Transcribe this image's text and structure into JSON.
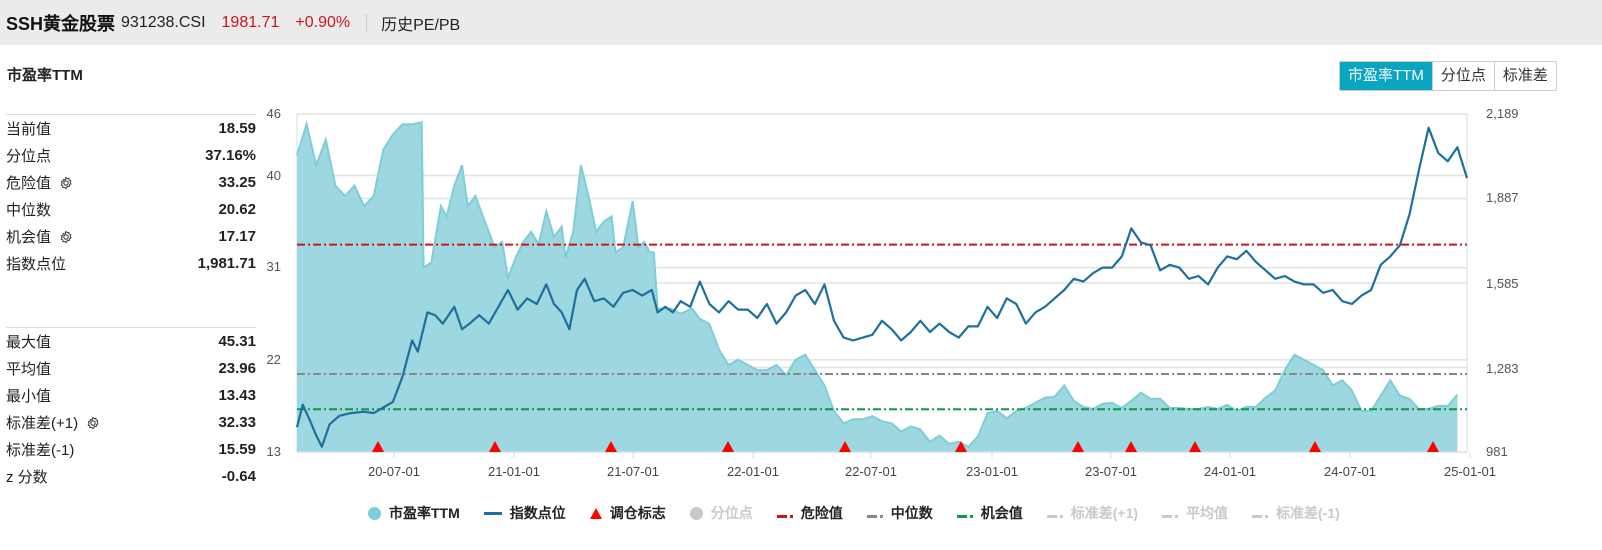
{
  "header": {
    "name": "SSH黄金股票",
    "code": "931238.CSI",
    "price": "1981.71",
    "change": "+0.90%",
    "page": "历史PE/PB"
  },
  "section": {
    "title": "市盈率TTM"
  },
  "tabs": [
    {
      "label": "市盈率TTM",
      "active": true
    },
    {
      "label": "分位点",
      "active": false
    },
    {
      "label": "标准差",
      "active": false
    }
  ],
  "stats_primary": [
    {
      "label": "当前值",
      "value": "18.59",
      "gear": false
    },
    {
      "label": "分位点",
      "value": "37.16%",
      "gear": false
    },
    {
      "label": "危险值",
      "value": "33.25",
      "gear": true
    },
    {
      "label": "中位数",
      "value": "20.62",
      "gear": false
    },
    {
      "label": "机会值",
      "value": "17.17",
      "gear": true
    },
    {
      "label": "指数点位",
      "value": "1,981.71",
      "gear": false
    }
  ],
  "stats_secondary": [
    {
      "label": "最大值",
      "value": "45.31",
      "gear": false
    },
    {
      "label": "平均值",
      "value": "23.96",
      "gear": false
    },
    {
      "label": "最小值",
      "value": "13.43",
      "gear": false
    },
    {
      "label": "标准差(+1)",
      "value": "32.33",
      "gear": true
    },
    {
      "label": "标准差(-1)",
      "value": "15.59",
      "gear": false
    },
    {
      "label": "z 分数",
      "value": "-0.64",
      "gear": false
    }
  ],
  "legend": [
    {
      "label": "市盈率TTM",
      "type": "dot",
      "color": "#7ecdd7",
      "active": true
    },
    {
      "label": "指数点位",
      "type": "bar",
      "color": "#1f6f9c",
      "active": true
    },
    {
      "label": "调仓标志",
      "type": "tri",
      "color": "#ff0000",
      "active": true
    },
    {
      "label": "分位点",
      "type": "dot",
      "color": "#c9c9c9",
      "active": false
    },
    {
      "label": "危险值",
      "type": "dash",
      "color": "#c8161d",
      "active": true
    },
    {
      "label": "中位数",
      "type": "dash",
      "color": "#888888",
      "active": true
    },
    {
      "label": "机会值",
      "type": "dash",
      "color": "#12964a",
      "active": true
    },
    {
      "label": "标准差(+1)",
      "type": "dash",
      "color": "#c9c9c9",
      "active": false
    },
    {
      "label": "平均值",
      "type": "dash",
      "color": "#c9c9c9",
      "active": false
    },
    {
      "label": "标准差(-1)",
      "type": "dash",
      "color": "#c9c9c9",
      "active": false
    }
  ],
  "chart_data": {
    "type": "area+line",
    "title": "市盈率TTM",
    "left_axis": {
      "label": "市盈率TTM",
      "ticks": [
        46,
        40,
        31,
        22,
        13
      ],
      "range": [
        13,
        46
      ]
    },
    "right_axis": {
      "label": "指数点位",
      "ticks": [
        "2,189",
        "1,887",
        "1,585",
        "1,283",
        "981"
      ],
      "range": [
        981,
        2189
      ]
    },
    "x_ticks": [
      "20-07-01",
      "21-01-01",
      "21-07-01",
      "22-01-01",
      "22-07-01",
      "23-01-01",
      "23-07-01",
      "24-01-01",
      "24-07-01",
      "25-01-01"
    ],
    "x_range": [
      "20-02",
      "25-02"
    ],
    "reference_lines": [
      {
        "name": "危险值",
        "value": 33.25,
        "color": "#c8161d"
      },
      {
        "name": "中位数",
        "value": 20.62,
        "color": "#888888"
      },
      {
        "name": "机会值",
        "value": 17.17,
        "color": "#12964a"
      }
    ],
    "rebalance_markers": [
      "20-06",
      "20-12",
      "21-06",
      "21-12",
      "22-06",
      "22-12",
      "23-06",
      "23-09",
      "23-12",
      "24-06",
      "24-12"
    ],
    "series": [
      {
        "name": "市盈率TTM",
        "type": "area",
        "color": "#7ecdd7",
        "points": [
          [
            0,
            42
          ],
          [
            0.5,
            45
          ],
          [
            1,
            41
          ],
          [
            1.5,
            43.5
          ],
          [
            2,
            39
          ],
          [
            2.5,
            38
          ],
          [
            3,
            39
          ],
          [
            3.5,
            37
          ],
          [
            4,
            38
          ],
          [
            4.5,
            42.5
          ],
          [
            5,
            44
          ],
          [
            5.5,
            45
          ],
          [
            6,
            45
          ],
          [
            6.5,
            45.2
          ],
          [
            6.6,
            31
          ],
          [
            7,
            31.5
          ],
          [
            7.5,
            37
          ],
          [
            7.8,
            36
          ],
          [
            8.2,
            39
          ],
          [
            8.6,
            41
          ],
          [
            8.9,
            37
          ],
          [
            9.3,
            38
          ],
          [
            9.7,
            36
          ],
          [
            10,
            34.5
          ],
          [
            10.3,
            33
          ],
          [
            10.7,
            33.5
          ],
          [
            11,
            30
          ],
          [
            11.4,
            32
          ],
          [
            11.8,
            33.5
          ],
          [
            12.2,
            34.5
          ],
          [
            12.6,
            33.3
          ],
          [
            13,
            36.5
          ],
          [
            13.4,
            34
          ],
          [
            13.8,
            35
          ],
          [
            14,
            32
          ],
          [
            14.4,
            34.5
          ],
          [
            14.8,
            41
          ],
          [
            15.2,
            38
          ],
          [
            15.6,
            34.5
          ],
          [
            16,
            35.5
          ],
          [
            16.4,
            36
          ],
          [
            16.6,
            32.5
          ],
          [
            17,
            33
          ],
          [
            17.5,
            37.5
          ],
          [
            17.8,
            33
          ],
          [
            18.1,
            33.5
          ],
          [
            18.4,
            32.5
          ],
          [
            18.6,
            32.5
          ],
          [
            18.8,
            27
          ],
          [
            19.5,
            27
          ],
          [
            20,
            26.5
          ],
          [
            20.6,
            27
          ],
          [
            21,
            26
          ],
          [
            21.5,
            25.5
          ],
          [
            22,
            23
          ],
          [
            22.5,
            21.5
          ],
          [
            23,
            22
          ],
          [
            23.5,
            21.5
          ],
          [
            24,
            21
          ],
          [
            24.5,
            21
          ],
          [
            25,
            21.5
          ],
          [
            25.5,
            20.5
          ],
          [
            26,
            22
          ],
          [
            26.5,
            22.5
          ],
          [
            27,
            21
          ],
          [
            27.5,
            19.5
          ],
          [
            28,
            17
          ],
          [
            28.5,
            15.8
          ],
          [
            29,
            16.2
          ],
          [
            29.5,
            16.2
          ],
          [
            30,
            16.5
          ],
          [
            30.5,
            16
          ],
          [
            31,
            15.8
          ],
          [
            31.5,
            15
          ],
          [
            32,
            15.5
          ],
          [
            32.5,
            15.2
          ],
          [
            33,
            14
          ],
          [
            33.5,
            14.6
          ],
          [
            34,
            13.8
          ],
          [
            34.5,
            14
          ],
          [
            35,
            13.5
          ],
          [
            35.5,
            14.5
          ],
          [
            36,
            16.8
          ],
          [
            36.5,
            17
          ],
          [
            37,
            16.3
          ],
          [
            37.5,
            17
          ],
          [
            38,
            17.3
          ],
          [
            38.5,
            17.8
          ],
          [
            39,
            18.3
          ],
          [
            39.5,
            18.4
          ],
          [
            40,
            19.5
          ],
          [
            40.5,
            18
          ],
          [
            41,
            17.4
          ],
          [
            41.5,
            17.2
          ],
          [
            42,
            17.7
          ],
          [
            42.5,
            17.8
          ],
          [
            43,
            17.3
          ],
          [
            43.5,
            18
          ],
          [
            44,
            18.8
          ],
          [
            44.5,
            18.2
          ],
          [
            45,
            18.2
          ],
          [
            45.5,
            17.3
          ],
          [
            46,
            17.3
          ],
          [
            46.5,
            17.2
          ],
          [
            47,
            17.2
          ],
          [
            47.5,
            17.4
          ],
          [
            48,
            17.2
          ],
          [
            48.5,
            17.6
          ],
          [
            49,
            17
          ],
          [
            49.5,
            17.4
          ],
          [
            50,
            17.4
          ],
          [
            50.5,
            18.3
          ],
          [
            51,
            19
          ],
          [
            51.5,
            21
          ],
          [
            52,
            22.5
          ],
          [
            52.5,
            22
          ],
          [
            53,
            21.5
          ],
          [
            53.5,
            21
          ],
          [
            54,
            19.5
          ],
          [
            54.5,
            20
          ],
          [
            55,
            19
          ],
          [
            55.5,
            17
          ],
          [
            56,
            17
          ],
          [
            56.5,
            18.5
          ],
          [
            57,
            20
          ],
          [
            57.5,
            18.5
          ],
          [
            58,
            18.2
          ],
          [
            58.5,
            17.2
          ],
          [
            59,
            17.2
          ],
          [
            59.5,
            17.5
          ],
          [
            60,
            17.5
          ],
          [
            60.5,
            18.6
          ]
        ]
      },
      {
        "name": "指数点位",
        "type": "line",
        "color": "#1f6f9c",
        "points": [
          [
            0,
            1070
          ],
          [
            0.3,
            1150
          ],
          [
            0.7,
            1090
          ],
          [
            1,
            1040
          ],
          [
            1.3,
            1000
          ],
          [
            1.7,
            1080
          ],
          [
            2.2,
            1110
          ],
          [
            2.8,
            1120
          ],
          [
            3.5,
            1125
          ],
          [
            4,
            1120
          ],
          [
            4.5,
            1140
          ],
          [
            5,
            1160
          ],
          [
            5.5,
            1250
          ],
          [
            6,
            1380
          ],
          [
            6.3,
            1340
          ],
          [
            6.8,
            1480
          ],
          [
            7.2,
            1470
          ],
          [
            7.6,
            1440
          ],
          [
            8.2,
            1500
          ],
          [
            8.6,
            1420
          ],
          [
            9,
            1440
          ],
          [
            9.5,
            1470
          ],
          [
            10,
            1440
          ],
          [
            10.5,
            1500
          ],
          [
            11,
            1560
          ],
          [
            11.5,
            1490
          ],
          [
            12,
            1530
          ],
          [
            12.5,
            1510
          ],
          [
            13,
            1580
          ],
          [
            13.4,
            1510
          ],
          [
            13.8,
            1480
          ],
          [
            14.2,
            1420
          ],
          [
            14.6,
            1560
          ],
          [
            15,
            1600
          ],
          [
            15.5,
            1520
          ],
          [
            16,
            1530
          ],
          [
            16.5,
            1500
          ],
          [
            17,
            1550
          ],
          [
            17.5,
            1560
          ],
          [
            18,
            1540
          ],
          [
            18.5,
            1560
          ],
          [
            18.8,
            1480
          ],
          [
            19.2,
            1500
          ],
          [
            19.6,
            1480
          ],
          [
            20,
            1520
          ],
          [
            20.5,
            1500
          ],
          [
            21,
            1590
          ],
          [
            21.5,
            1510
          ],
          [
            22,
            1480
          ],
          [
            22.5,
            1520
          ],
          [
            23,
            1490
          ],
          [
            23.5,
            1490
          ],
          [
            24,
            1460
          ],
          [
            24.5,
            1510
          ],
          [
            25,
            1440
          ],
          [
            25.5,
            1480
          ],
          [
            26,
            1540
          ],
          [
            26.5,
            1560
          ],
          [
            27,
            1510
          ],
          [
            27.5,
            1580
          ],
          [
            28,
            1450
          ],
          [
            28.5,
            1390
          ],
          [
            29,
            1380
          ],
          [
            29.5,
            1390
          ],
          [
            30,
            1400
          ],
          [
            30.5,
            1450
          ],
          [
            31,
            1420
          ],
          [
            31.5,
            1380
          ],
          [
            32,
            1410
          ],
          [
            32.5,
            1450
          ],
          [
            33,
            1410
          ],
          [
            33.5,
            1440
          ],
          [
            34,
            1410
          ],
          [
            34.5,
            1390
          ],
          [
            35,
            1430
          ],
          [
            35.5,
            1430
          ],
          [
            36,
            1500
          ],
          [
            36.5,
            1460
          ],
          [
            37,
            1530
          ],
          [
            37.5,
            1510
          ],
          [
            38,
            1440
          ],
          [
            38.5,
            1480
          ],
          [
            39,
            1500
          ],
          [
            39.5,
            1530
          ],
          [
            40,
            1560
          ],
          [
            40.5,
            1600
          ],
          [
            41,
            1590
          ],
          [
            41.5,
            1620
          ],
          [
            42,
            1640
          ],
          [
            42.5,
            1640
          ],
          [
            43,
            1680
          ],
          [
            43.5,
            1780
          ],
          [
            44,
            1730
          ],
          [
            44.5,
            1720
          ],
          [
            45,
            1630
          ],
          [
            45.5,
            1650
          ],
          [
            46,
            1640
          ],
          [
            46.5,
            1600
          ],
          [
            47,
            1610
          ],
          [
            47.5,
            1580
          ],
          [
            48,
            1640
          ],
          [
            48.5,
            1680
          ],
          [
            49,
            1670
          ],
          [
            49.5,
            1700
          ],
          [
            50,
            1660
          ],
          [
            50.5,
            1630
          ],
          [
            51,
            1600
          ],
          [
            51.5,
            1610
          ],
          [
            52,
            1590
          ],
          [
            52.5,
            1580
          ],
          [
            53,
            1580
          ],
          [
            53.5,
            1550
          ],
          [
            54,
            1560
          ],
          [
            54.5,
            1520
          ],
          [
            55,
            1510
          ],
          [
            55.5,
            1540
          ],
          [
            56,
            1560
          ],
          [
            56.5,
            1650
          ],
          [
            57,
            1680
          ],
          [
            57.5,
            1720
          ],
          [
            58,
            1830
          ],
          [
            58.5,
            1990
          ],
          [
            59,
            2140
          ],
          [
            59.5,
            2050
          ],
          [
            60,
            2020
          ],
          [
            60.5,
            2070
          ],
          [
            61,
            1960
          ]
        ]
      }
    ]
  }
}
